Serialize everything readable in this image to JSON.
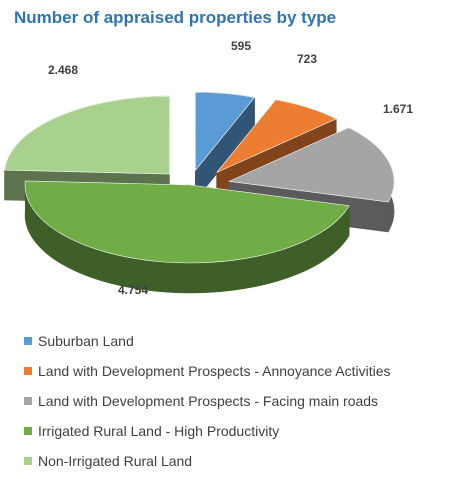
{
  "title": "Number of appraised properties by type",
  "chart_data": {
    "type": "pie",
    "title": "Number of appraised properties by type",
    "categories": [
      "Suburban Land",
      "Land with Development Prospects - Annoyance Activities",
      "Land with Development Prospects - Facing main roads",
      "Irrigated Rural Land - High Productivity",
      "Non-Irrigated Rural Land"
    ],
    "values": [
      595,
      723,
      1671,
      4754,
      2468
    ],
    "data_labels": [
      "595",
      "723",
      "1.671",
      "4.754",
      "2.468"
    ],
    "colors": [
      "#5b9bd5",
      "#ed7d31",
      "#a5a5a5",
      "#70ad47",
      "#a9d18e"
    ],
    "exploded": true,
    "three_d": true,
    "legend_position": "bottom"
  }
}
